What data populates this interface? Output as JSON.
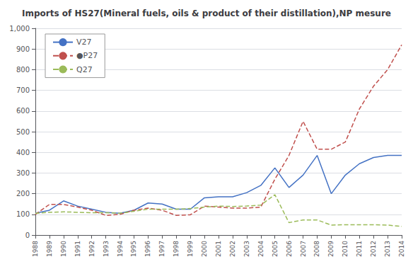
{
  "chart_data": {
    "type": "line",
    "title": "Imports of HS27(Mineral fuels, oils & product of their distillation),NP mesure",
    "categories": [
      "1988",
      "1989",
      "1990",
      "1991",
      "1992",
      "1993",
      "1994",
      "1995",
      "1996",
      "1997",
      "1998",
      "1999",
      "2000",
      "2001",
      "2002",
      "2003",
      "2004",
      "2005",
      "2006",
      "2007",
      "2008",
      "2009",
      "2010",
      "2011",
      "2012",
      "2013",
      "2014"
    ],
    "series": [
      {
        "name": "V27",
        "color": "#4472C4",
        "line_style": "solid",
        "values": [
          105,
          120,
          165,
          140,
          125,
          110,
          105,
          120,
          155,
          150,
          125,
          125,
          180,
          185,
          185,
          205,
          240,
          325,
          230,
          290,
          385,
          200,
          290,
          345,
          375,
          385,
          385
        ]
      },
      {
        "name": "●P27",
        "color": "#C0504D",
        "line_style": "dashed",
        "values": [
          100,
          148,
          148,
          135,
          120,
          95,
          100,
          120,
          130,
          120,
          95,
          98,
          140,
          135,
          130,
          130,
          135,
          270,
          385,
          550,
          415,
          415,
          450,
          610,
          720,
          800,
          920
        ]
      },
      {
        "name": "Q27",
        "color": "#9BBB59",
        "line_style": "dashed",
        "values": [
          105,
          110,
          112,
          110,
          108,
          108,
          105,
          115,
          125,
          125,
          125,
          128,
          135,
          140,
          138,
          140,
          145,
          195,
          60,
          73,
          73,
          48,
          50,
          50,
          50,
          48,
          42
        ]
      }
    ],
    "ylim": [
      0,
      1000
    ],
    "yticks": [
      0,
      100,
      200,
      300,
      400,
      500,
      600,
      700,
      800,
      900,
      1000
    ],
    "grid": true,
    "legend": "upper left"
  }
}
